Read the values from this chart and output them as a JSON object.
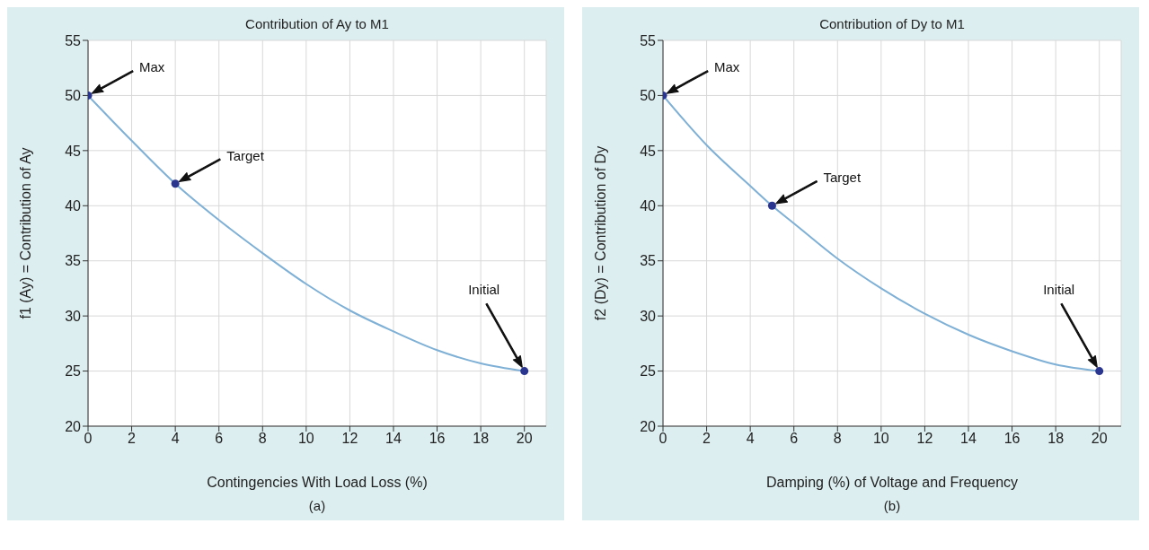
{
  "chart_data": [
    {
      "type": "line",
      "title": "Contribution of Ay to M1",
      "xlabel": "Contingencies With Load Loss (%)",
      "ylabel": "f1 (Ay) = Contribution of Ay",
      "xlim": [
        0,
        21
      ],
      "xticks": [
        0,
        2,
        4,
        6,
        8,
        10,
        12,
        14,
        16,
        18,
        20
      ],
      "ylim": [
        20,
        55
      ],
      "yticks": [
        20,
        25,
        30,
        35,
        40,
        45,
        50,
        55
      ],
      "grid": true,
      "series": [
        {
          "type": "line",
          "marker": "none",
          "color": "#7fb0d6",
          "x": [
            0,
            2,
            4,
            6,
            8,
            10,
            12,
            14,
            16,
            18,
            20
          ],
          "values": [
            50,
            45.9,
            42,
            38.7,
            35.7,
            32.9,
            30.5,
            28.6,
            26.9,
            25.7,
            25
          ]
        },
        {
          "type": "scatter",
          "marker": "circle",
          "color": "#2a3590",
          "x": [
            0,
            4,
            20
          ],
          "values": [
            50,
            42,
            25
          ]
        }
      ],
      "annotations": [
        "Max",
        "Target",
        "Initial",
        "(a)"
      ]
    },
    {
      "type": "line",
      "title": "Contribution of Dy to M1",
      "xlabel": "Damping (%) of Voltage and Frequency",
      "ylabel": "f2 (Dy) = Contribution of Dy",
      "xlim": [
        0,
        21
      ],
      "xticks": [
        0,
        2,
        4,
        6,
        8,
        10,
        12,
        14,
        16,
        18,
        20
      ],
      "ylim": [
        20,
        55
      ],
      "yticks": [
        20,
        25,
        30,
        35,
        40,
        45,
        50,
        55
      ],
      "grid": true,
      "series": [
        {
          "type": "line",
          "marker": "none",
          "color": "#7fb0d6",
          "x": [
            0,
            2,
            4,
            5,
            6,
            8,
            10,
            12,
            14,
            16,
            18,
            20
          ],
          "values": [
            50,
            45.5,
            41.8,
            40,
            38.4,
            35.2,
            32.5,
            30.2,
            28.3,
            26.8,
            25.6,
            25
          ]
        },
        {
          "type": "scatter",
          "marker": "circle",
          "color": "#2a3590",
          "x": [
            0,
            5,
            20
          ],
          "values": [
            50,
            40,
            25
          ]
        }
      ],
      "annotations": [
        "Max",
        "Target",
        "Initial",
        "(b)"
      ]
    }
  ]
}
